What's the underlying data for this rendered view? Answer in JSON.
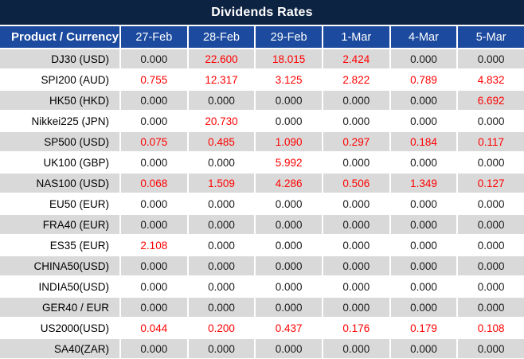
{
  "title": "Dividends Rates",
  "colors": {
    "title_bg": "#0d2342",
    "header_bg": "#1b4a9e",
    "alt_row_bg": "#d9d9d9",
    "row_bg": "#ffffff",
    "nonzero_value_color": "#ff0000",
    "zero_value_color": "#1a1a1a",
    "header_text": "#ffffff"
  },
  "table": {
    "product_header": "Product / Currency",
    "date_headers": [
      "27-Feb",
      "28-Feb",
      "29-Feb",
      "1-Mar",
      "4-Mar",
      "5-Mar"
    ],
    "rows": [
      {
        "product": "DJ30 (USD)",
        "values": [
          "0.000",
          "22.600",
          "18.015",
          "2.424",
          "0.000",
          "0.000"
        ]
      },
      {
        "product": "SPI200 (AUD)",
        "values": [
          "0.755",
          "12.317",
          "3.125",
          "2.822",
          "0.789",
          "4.832"
        ]
      },
      {
        "product": "HK50 (HKD)",
        "values": [
          "0.000",
          "0.000",
          "0.000",
          "0.000",
          "0.000",
          "6.692"
        ]
      },
      {
        "product": "Nikkei225 (JPN)",
        "values": [
          "0.000",
          "20.730",
          "0.000",
          "0.000",
          "0.000",
          "0.000"
        ]
      },
      {
        "product": "SP500 (USD)",
        "values": [
          "0.075",
          "0.485",
          "1.090",
          "0.297",
          "0.184",
          "0.117"
        ]
      },
      {
        "product": "UK100 (GBP)",
        "values": [
          "0.000",
          "0.000",
          "5.992",
          "0.000",
          "0.000",
          "0.000"
        ]
      },
      {
        "product": "NAS100 (USD)",
        "values": [
          "0.068",
          "1.509",
          "4.286",
          "0.506",
          "1.349",
          "0.127"
        ]
      },
      {
        "product": "EU50 (EUR)",
        "values": [
          "0.000",
          "0.000",
          "0.000",
          "0.000",
          "0.000",
          "0.000"
        ]
      },
      {
        "product": "FRA40 (EUR)",
        "values": [
          "0.000",
          "0.000",
          "0.000",
          "0.000",
          "0.000",
          "0.000"
        ]
      },
      {
        "product": "ES35 (EUR)",
        "values": [
          "2.108",
          "0.000",
          "0.000",
          "0.000",
          "0.000",
          "0.000"
        ]
      },
      {
        "product": "CHINA50(USD)",
        "values": [
          "0.000",
          "0.000",
          "0.000",
          "0.000",
          "0.000",
          "0.000"
        ]
      },
      {
        "product": "INDIA50(USD)",
        "values": [
          "0.000",
          "0.000",
          "0.000",
          "0.000",
          "0.000",
          "0.000"
        ]
      },
      {
        "product": "GER40 / EUR",
        "values": [
          "0.000",
          "0.000",
          "0.000",
          "0.000",
          "0.000",
          "0.000"
        ]
      },
      {
        "product": "US2000(USD)",
        "values": [
          "0.044",
          "0.200",
          "0.437",
          "0.176",
          "0.179",
          "0.108"
        ]
      },
      {
        "product": "SA40(ZAR)",
        "values": [
          "0.000",
          "0.000",
          "0.000",
          "0.000",
          "0.000",
          "0.000"
        ]
      }
    ]
  }
}
